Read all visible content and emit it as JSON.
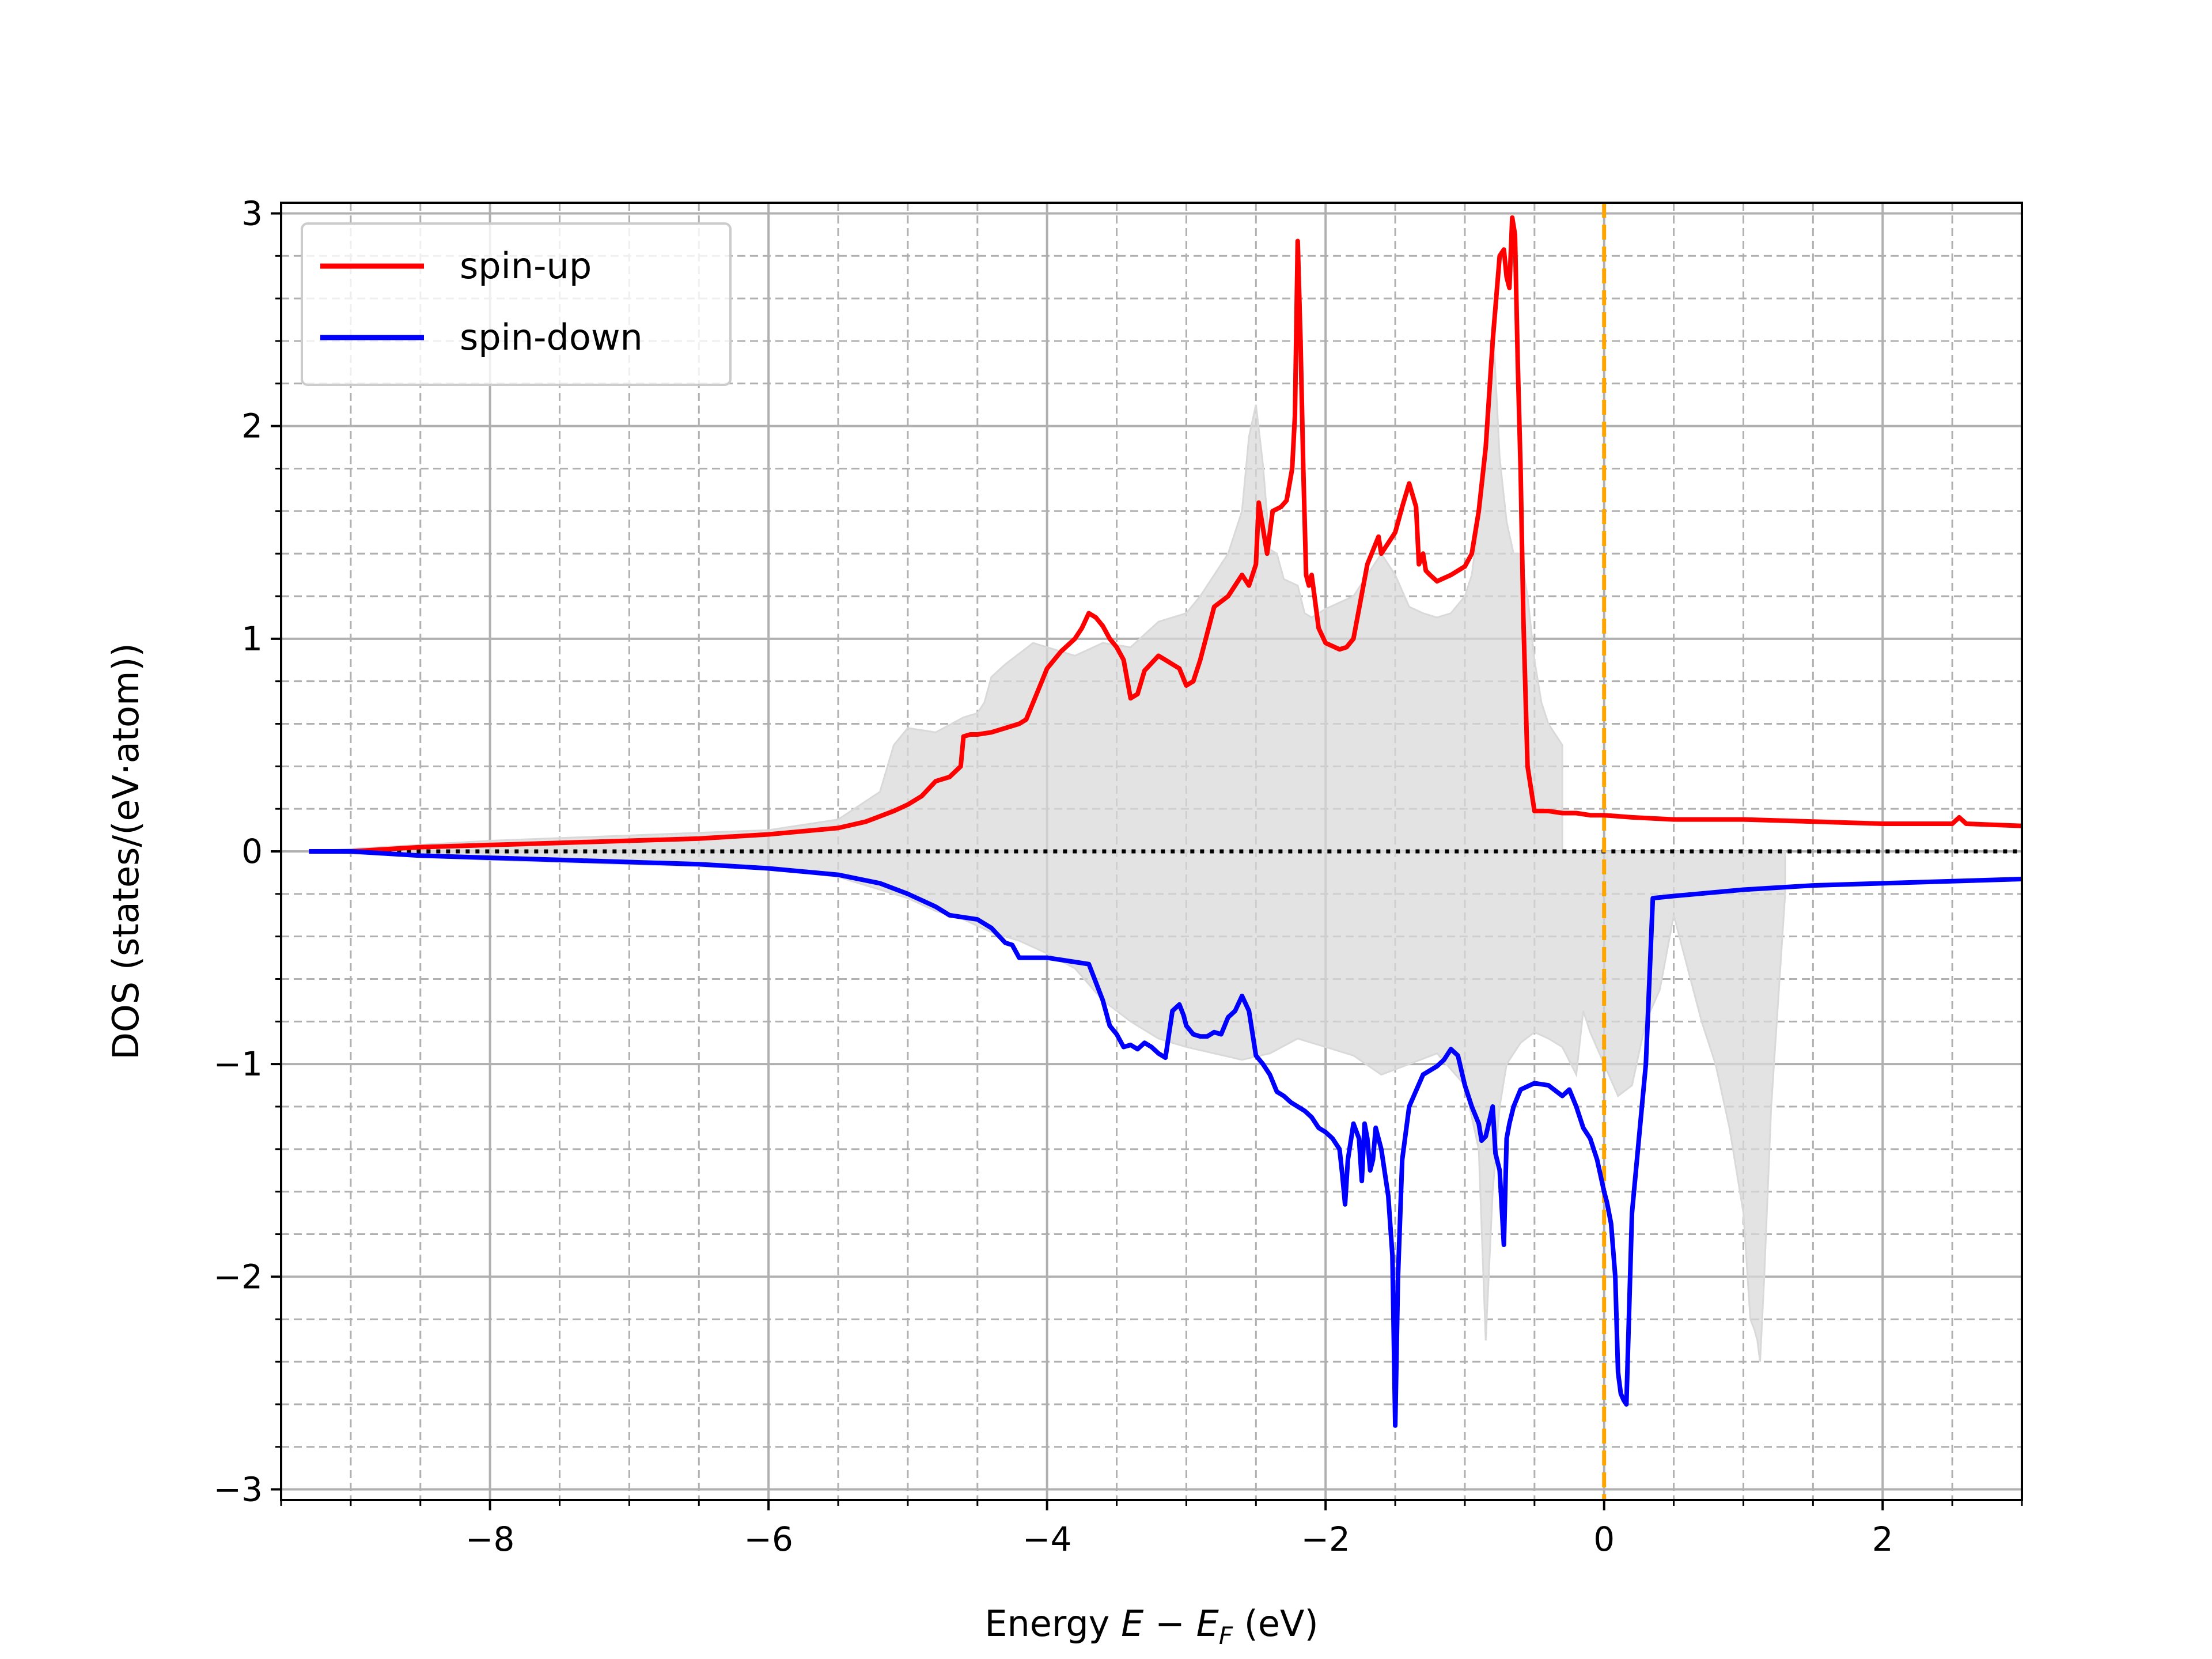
{
  "chart_data": {
    "type": "line",
    "title": "",
    "xlabel": "Energy E − E_F (eV)",
    "xlabel_parts": {
      "prefix": "Energy ",
      "E": "E",
      "minus": " − ",
      "EF": "E",
      "F": "F",
      "suffix": " (eV)"
    },
    "ylabel": "DOS (states/(eV·atom))",
    "xlim": [
      -9.5,
      3.0
    ],
    "ylim": [
      -3.05,
      3.05
    ],
    "xticks": [
      -8,
      -6,
      -4,
      -2,
      0,
      2
    ],
    "xtick_labels": [
      "−8",
      "−6",
      "−4",
      "−2",
      "0",
      "2"
    ],
    "yticks": [
      -3,
      -2,
      -1,
      0,
      1,
      2,
      3
    ],
    "ytick_labels": [
      "−3",
      "−2",
      "−1",
      "0",
      "1",
      "2",
      "3"
    ],
    "grid": "major solid, minor dashed",
    "legend_position": "top-left",
    "fermi_level": 0.0,
    "colors": {
      "spin_up": "#ff0000",
      "spin_down": "#0000ff",
      "reference_fill": "#d9d9d9",
      "fermi_line": "#ffa500",
      "zero_line": "#000000",
      "grid": "#b0b0b0"
    },
    "series": [
      {
        "name": "spin-up",
        "color": "#ff0000",
        "x": [
          -9.3,
          -9.0,
          -8.5,
          -8.0,
          -7.5,
          -7.0,
          -6.5,
          -6.0,
          -5.5,
          -5.3,
          -5.1,
          -5.0,
          -4.9,
          -4.8,
          -4.7,
          -4.62,
          -4.6,
          -4.55,
          -4.5,
          -4.4,
          -4.3,
          -4.2,
          -4.15,
          -4.1,
          -4.0,
          -3.9,
          -3.8,
          -3.75,
          -3.7,
          -3.65,
          -3.6,
          -3.55,
          -3.5,
          -3.45,
          -3.4,
          -3.35,
          -3.3,
          -3.2,
          -3.15,
          -3.1,
          -3.05,
          -3.0,
          -2.95,
          -2.9,
          -2.8,
          -2.7,
          -2.65,
          -2.6,
          -2.55,
          -2.5,
          -2.48,
          -2.42,
          -2.38,
          -2.32,
          -2.28,
          -2.24,
          -2.22,
          -2.2,
          -2.18,
          -2.16,
          -2.14,
          -2.12,
          -2.1,
          -2.08,
          -2.05,
          -2.0,
          -1.9,
          -1.85,
          -1.8,
          -1.7,
          -1.62,
          -1.6,
          -1.55,
          -1.5,
          -1.45,
          -1.4,
          -1.35,
          -1.33,
          -1.3,
          -1.28,
          -1.25,
          -1.2,
          -1.1,
          -1.0,
          -0.95,
          -0.9,
          -0.85,
          -0.8,
          -0.75,
          -0.72,
          -0.7,
          -0.68,
          -0.66,
          -0.64,
          -0.62,
          -0.6,
          -0.58,
          -0.55,
          -0.5,
          -0.48,
          -0.47,
          -0.4,
          -0.3,
          -0.2,
          -0.1,
          0.0,
          0.2,
          0.5,
          1.0,
          1.5,
          2.0,
          2.5,
          2.55,
          2.6,
          3.0
        ],
        "y": [
          0.0,
          0.0,
          0.02,
          0.03,
          0.04,
          0.05,
          0.06,
          0.08,
          0.11,
          0.14,
          0.19,
          0.22,
          0.26,
          0.33,
          0.35,
          0.4,
          0.54,
          0.55,
          0.55,
          0.56,
          0.58,
          0.6,
          0.62,
          0.7,
          0.86,
          0.94,
          1.0,
          1.05,
          1.12,
          1.1,
          1.06,
          1.0,
          0.96,
          0.9,
          0.72,
          0.74,
          0.85,
          0.92,
          0.9,
          0.88,
          0.86,
          0.78,
          0.8,
          0.9,
          1.15,
          1.2,
          1.25,
          1.3,
          1.25,
          1.35,
          1.64,
          1.4,
          1.6,
          1.62,
          1.65,
          1.8,
          2.05,
          2.87,
          2.4,
          1.8,
          1.3,
          1.25,
          1.3,
          1.2,
          1.05,
          0.98,
          0.95,
          0.96,
          1.0,
          1.35,
          1.48,
          1.4,
          1.45,
          1.5,
          1.62,
          1.73,
          1.62,
          1.35,
          1.4,
          1.32,
          1.3,
          1.27,
          1.3,
          1.34,
          1.4,
          1.6,
          1.9,
          2.4,
          2.8,
          2.83,
          2.7,
          2.65,
          2.98,
          2.9,
          2.3,
          1.8,
          1.1,
          0.4,
          0.19,
          0.19,
          0.19,
          0.19,
          0.18,
          0.18,
          0.17,
          0.17,
          0.16,
          0.15,
          0.15,
          0.14,
          0.13,
          0.13,
          0.16,
          0.13,
          0.12
        ]
      },
      {
        "name": "spin-down",
        "color": "#0000ff",
        "x": [
          -9.3,
          -9.0,
          -8.5,
          -8.0,
          -7.5,
          -7.0,
          -6.5,
          -6.0,
          -5.5,
          -5.2,
          -5.0,
          -4.9,
          -4.8,
          -4.7,
          -4.6,
          -4.5,
          -4.4,
          -4.3,
          -4.25,
          -4.2,
          -4.15,
          -4.0,
          -3.8,
          -3.7,
          -3.6,
          -3.55,
          -3.5,
          -3.45,
          -3.4,
          -3.35,
          -3.3,
          -3.25,
          -3.2,
          -3.15,
          -3.1,
          -3.05,
          -3.02,
          -3.0,
          -2.95,
          -2.9,
          -2.85,
          -2.8,
          -2.75,
          -2.7,
          -2.65,
          -2.6,
          -2.55,
          -2.5,
          -2.45,
          -2.4,
          -2.35,
          -2.3,
          -2.25,
          -2.2,
          -2.15,
          -2.1,
          -2.05,
          -2.0,
          -1.95,
          -1.9,
          -1.88,
          -1.86,
          -1.84,
          -1.8,
          -1.76,
          -1.74,
          -1.72,
          -1.7,
          -1.68,
          -1.66,
          -1.64,
          -1.6,
          -1.55,
          -1.52,
          -1.5,
          -1.48,
          -1.45,
          -1.4,
          -1.3,
          -1.2,
          -1.15,
          -1.1,
          -1.05,
          -1.0,
          -0.95,
          -0.9,
          -0.88,
          -0.85,
          -0.8,
          -0.78,
          -0.75,
          -0.72,
          -0.7,
          -0.68,
          -0.65,
          -0.6,
          -0.5,
          -0.4,
          -0.3,
          -0.25,
          -0.2,
          -0.15,
          -0.1,
          -0.05,
          0.0,
          0.02,
          0.05,
          0.08,
          0.1,
          0.12,
          0.14,
          0.16,
          0.2,
          0.3,
          0.35,
          0.5,
          1.0,
          1.5,
          2.0,
          3.0
        ],
        "y": [
          0.0,
          0.0,
          -0.02,
          -0.03,
          -0.04,
          -0.05,
          -0.06,
          -0.08,
          -0.11,
          -0.15,
          -0.2,
          -0.23,
          -0.26,
          -0.3,
          -0.31,
          -0.32,
          -0.36,
          -0.43,
          -0.44,
          -0.5,
          -0.5,
          -0.5,
          -0.52,
          -0.53,
          -0.7,
          -0.82,
          -0.86,
          -0.92,
          -0.91,
          -0.93,
          -0.9,
          -0.92,
          -0.95,
          -0.97,
          -0.75,
          -0.72,
          -0.77,
          -0.82,
          -0.86,
          -0.87,
          -0.87,
          -0.85,
          -0.86,
          -0.78,
          -0.75,
          -0.68,
          -0.75,
          -0.96,
          -1.0,
          -1.05,
          -1.13,
          -1.15,
          -1.18,
          -1.2,
          -1.22,
          -1.25,
          -1.3,
          -1.32,
          -1.35,
          -1.4,
          -1.52,
          -1.66,
          -1.45,
          -1.28,
          -1.35,
          -1.55,
          -1.28,
          -1.35,
          -1.5,
          -1.45,
          -1.3,
          -1.4,
          -1.62,
          -1.9,
          -2.7,
          -2.0,
          -1.45,
          -1.2,
          -1.05,
          -1.01,
          -0.98,
          -0.93,
          -0.96,
          -1.1,
          -1.2,
          -1.28,
          -1.36,
          -1.34,
          -1.2,
          -1.42,
          -1.5,
          -1.85,
          -1.35,
          -1.28,
          -1.2,
          -1.12,
          -1.09,
          -1.1,
          -1.15,
          -1.12,
          -1.2,
          -1.3,
          -1.35,
          -1.45,
          -1.6,
          -1.65,
          -1.75,
          -2.0,
          -2.45,
          -2.55,
          -2.58,
          -2.6,
          -1.7,
          -1.0,
          -0.22,
          -0.21,
          -0.18,
          -0.16,
          -0.15,
          -0.13
        ]
      },
      {
        "name": "",
        "color": "#d9d9d9",
        "x": [
          -9.3,
          -8.0,
          -6.0,
          -5.5,
          -5.2,
          -5.1,
          -5.0,
          -4.8,
          -4.6,
          -4.5,
          -4.45,
          -4.4,
          -4.3,
          -4.1,
          -4.0,
          -3.9,
          -3.8,
          -3.6,
          -3.4,
          -3.2,
          -3.0,
          -2.9,
          -2.8,
          -2.7,
          -2.6,
          -2.55,
          -2.5,
          -2.45,
          -2.4,
          -2.35,
          -2.3,
          -2.2,
          -2.15,
          -2.1,
          -2.0,
          -1.8,
          -1.6,
          -1.5,
          -1.4,
          -1.3,
          -1.2,
          -1.1,
          -1.0,
          -0.95,
          -0.9,
          -0.85,
          -0.8,
          -0.75,
          -0.7,
          -0.65,
          -0.6,
          -0.55,
          -0.5,
          -0.45,
          -0.4,
          -0.35,
          -0.3
        ],
        "y": [
          0.0,
          0.05,
          0.1,
          0.15,
          0.28,
          0.5,
          0.58,
          0.56,
          0.63,
          0.65,
          0.7,
          0.82,
          0.88,
          0.98,
          0.96,
          0.94,
          0.92,
          0.98,
          0.96,
          1.08,
          1.12,
          1.2,
          1.3,
          1.4,
          1.6,
          1.95,
          2.1,
          1.82,
          1.42,
          1.4,
          1.28,
          1.25,
          1.12,
          1.1,
          1.14,
          1.2,
          1.4,
          1.3,
          1.15,
          1.12,
          1.1,
          1.12,
          1.2,
          1.3,
          1.55,
          1.8,
          2.5,
          1.85,
          1.55,
          1.4,
          1.4,
          1.2,
          0.9,
          0.7,
          0.6,
          0.55,
          0.5
        ]
      },
      {
        "name": "",
        "color": "#d9d9d9",
        "x": [
          -9.3,
          -8.0,
          -6.0,
          -5.5,
          -5.0,
          -4.8,
          -4.6,
          -4.4,
          -4.2,
          -4.0,
          -3.8,
          -3.6,
          -3.4,
          -3.2,
          -3.0,
          -2.8,
          -2.6,
          -2.4,
          -2.2,
          -2.0,
          -1.8,
          -1.6,
          -1.4,
          -1.2,
          -1.0,
          -0.9,
          -0.85,
          -0.8,
          -0.75,
          -0.7,
          -0.6,
          -0.5,
          -0.4,
          -0.3,
          -0.2,
          -0.15,
          -0.1,
          0.0,
          0.1,
          0.2,
          0.3,
          0.4,
          0.5,
          0.6,
          0.7,
          0.8,
          0.9,
          1.0,
          1.05,
          1.08,
          1.1,
          1.12,
          1.15,
          1.2,
          1.3
        ],
        "y": [
          0.0,
          -0.04,
          -0.08,
          -0.12,
          -0.22,
          -0.28,
          -0.32,
          -0.38,
          -0.42,
          -0.48,
          -0.55,
          -0.7,
          -0.8,
          -0.88,
          -0.92,
          -0.95,
          -0.98,
          -0.95,
          -0.88,
          -0.92,
          -0.96,
          -1.05,
          -1.0,
          -0.95,
          -1.1,
          -1.4,
          -2.3,
          -1.6,
          -1.2,
          -1.0,
          -0.9,
          -0.85,
          -0.88,
          -0.92,
          -1.05,
          -0.75,
          -0.85,
          -1.0,
          -1.15,
          -1.1,
          -0.8,
          -0.65,
          -0.3,
          -0.55,
          -0.8,
          -1.0,
          -1.3,
          -1.7,
          -2.2,
          -2.25,
          -2.3,
          -2.4,
          -2.0,
          -1.2,
          -0.2
        ]
      }
    ]
  }
}
